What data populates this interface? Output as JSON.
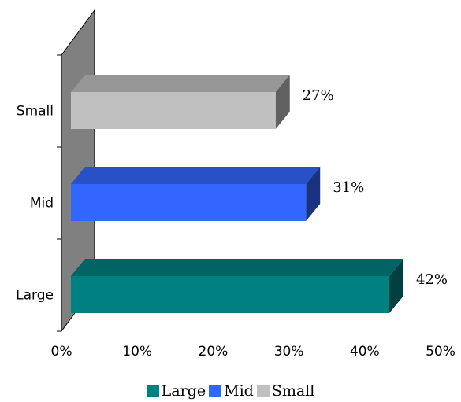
{
  "chart_data": {
    "type": "bar",
    "orientation": "horizontal",
    "categories": [
      "Small",
      "Mid",
      "Large"
    ],
    "values": [
      27,
      31,
      42
    ],
    "data_labels": [
      "27%",
      "31%",
      "42%"
    ],
    "colors": {
      "Small": "#C0C0C0",
      "Mid": "#3366FF",
      "Large": "#008080",
      "wall": "#808080"
    },
    "xlim": [
      0,
      50
    ],
    "xticks": [
      0,
      10,
      20,
      30,
      40,
      50
    ],
    "xtick_labels": [
      "0%",
      "10%",
      "20%",
      "30%",
      "40%",
      "50%"
    ],
    "legend": [
      "Large",
      "Mid",
      "Small"
    ],
    "legend_position": "bottom",
    "style": "3d",
    "grid": false
  }
}
